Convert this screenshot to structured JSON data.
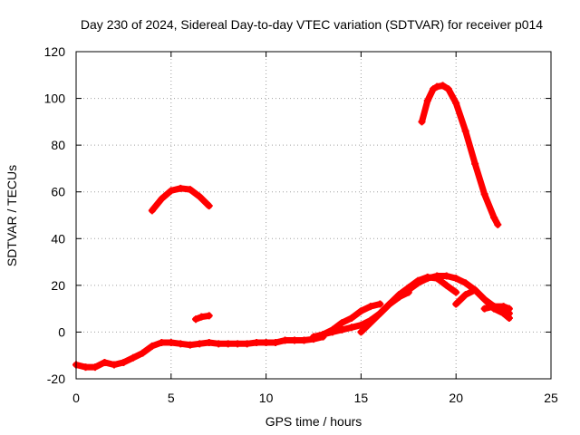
{
  "chart_data": {
    "type": "scatter",
    "title": "Day 230 of 2024, Sidereal Day-to-day VTEC variation (SDTVAR) for receiver p014",
    "xlabel": "GPS time / hours",
    "ylabel": "SDTVAR / TECUs",
    "xlim": [
      0,
      25
    ],
    "ylim": [
      -20,
      120
    ],
    "xticks": [
      0,
      5,
      10,
      15,
      20,
      25
    ],
    "yticks": [
      -20,
      0,
      20,
      40,
      60,
      80,
      100,
      120
    ],
    "xtick_labels": [
      "0",
      "5",
      "10",
      "15",
      "20",
      "25"
    ],
    "ytick_labels": [
      "-20",
      "0",
      "20",
      "40",
      "60",
      "80",
      "100",
      "120"
    ],
    "grid": true,
    "marker_color": "#ff0000",
    "series": [
      {
        "name": "arc-baseline",
        "x": [
          0.0,
          0.5,
          1.0,
          1.5,
          2.0,
          2.5,
          3.0,
          3.5,
          4.0,
          4.5,
          5.0,
          5.5,
          6.0,
          6.5,
          7.0,
          7.5,
          8.0,
          8.5,
          9.0,
          9.5,
          10.0,
          10.5,
          11.0,
          11.5,
          12.0,
          12.5,
          13.0
        ],
        "y": [
          -14,
          -15,
          -15,
          -13,
          -14,
          -13,
          -11,
          -9,
          -6,
          -4.5,
          -4.5,
          -5,
          -5.5,
          -5,
          -4.5,
          -5,
          -5,
          -5,
          -5,
          -4.5,
          -4.5,
          -4.5,
          -3.5,
          -3.5,
          -3.5,
          -3,
          -2
        ]
      },
      {
        "name": "arc-morning-hump",
        "x": [
          4.0,
          4.5,
          5.0,
          5.5,
          6.0,
          6.5,
          7.0
        ],
        "y": [
          52,
          57,
          60.5,
          61.5,
          61,
          58,
          54
        ]
      },
      {
        "name": "arc-short",
        "x": [
          6.3,
          6.6,
          7.0
        ],
        "y": [
          5.5,
          6.5,
          7
        ]
      },
      {
        "name": "arc-rising-a",
        "x": [
          12.5,
          13.0,
          13.5,
          14.0,
          14.5,
          15.0,
          15.5,
          16.0,
          16.5,
          17.0,
          17.5
        ],
        "y": [
          -2,
          -1,
          0,
          1,
          2,
          3,
          5,
          8,
          12,
          15,
          17
        ]
      },
      {
        "name": "arc-rising-b",
        "x": [
          13.0,
          13.5,
          14.0,
          14.5,
          15.0,
          15.5,
          16.0
        ],
        "y": [
          -1,
          1,
          4,
          6,
          9,
          11,
          12
        ]
      },
      {
        "name": "arc-rising-c",
        "x": [
          15.0,
          15.5,
          16.0,
          16.5,
          17.0,
          17.5,
          18.0,
          18.5,
          19.0,
          19.5,
          20.0
        ],
        "y": [
          0,
          4,
          8,
          12,
          16,
          19,
          22,
          23.5,
          23,
          20,
          17
        ]
      },
      {
        "name": "arc-rising-d",
        "x": [
          16.5,
          17.0,
          17.5,
          18.0,
          18.5,
          19.0,
          19.5,
          20.0,
          20.5,
          21.0,
          21.5,
          22.0,
          22.5,
          22.8
        ],
        "y": [
          12,
          15,
          18,
          21,
          23,
          24,
          24,
          23,
          21,
          18,
          14,
          11,
          9,
          8
        ]
      },
      {
        "name": "arc-late",
        "x": [
          20.0,
          20.5,
          21.0,
          21.5,
          22.0,
          22.5,
          22.8
        ],
        "y": [
          12,
          16,
          18,
          14,
          10,
          8,
          6
        ]
      },
      {
        "name": "arc-late-b",
        "x": [
          21.5,
          22.0,
          22.5,
          22.8
        ],
        "y": [
          10,
          11,
          11,
          10
        ]
      },
      {
        "name": "arc-evening-peak",
        "x": [
          18.2,
          18.5,
          18.8,
          19.0,
          19.3,
          19.6,
          20.0,
          20.5,
          21.0,
          21.5,
          22.0,
          22.2
        ],
        "y": [
          90,
          99,
          104,
          105,
          105.5,
          104,
          98,
          86,
          72,
          59,
          49,
          46
        ]
      }
    ]
  }
}
